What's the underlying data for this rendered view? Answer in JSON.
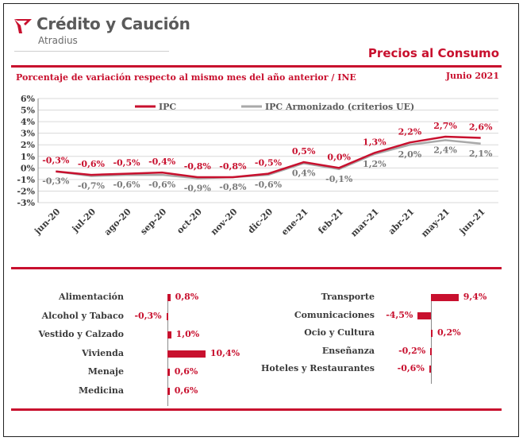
{
  "header": {
    "brand": "Crédito y Caución",
    "brand_sub": "Atradius",
    "report_title": "Precios al Consumo",
    "subtitle": "Porcentaje de variación respecto al mismo mes del año anterior / INE",
    "date": "Junio 2021"
  },
  "colors": {
    "accent": "#c8102e",
    "gray_series": "#a9a9a9",
    "text": "#3a3a3a"
  },
  "chart_data": [
    {
      "type": "line",
      "categories": [
        "jun-20",
        "jul-20",
        "ago-20",
        "sep-20",
        "oct-20",
        "nov-20",
        "dic-20",
        "ene-21",
        "feb-21",
        "mar-21",
        "abr-21",
        "may-21",
        "jun-21"
      ],
      "series": [
        {
          "name": "IPC",
          "values": [
            -0.3,
            -0.6,
            -0.5,
            -0.4,
            -0.8,
            -0.8,
            -0.5,
            0.5,
            0.0,
            1.3,
            2.2,
            2.7,
            2.6
          ],
          "labels": [
            "-0,3%",
            "-0,6%",
            "-0,5%",
            "-0,4%",
            "-0,8%",
            "-0,8%",
            "-0,5%",
            "0,5%",
            "0,0%",
            "1,3%",
            "2,2%",
            "2,7%",
            "2,6%"
          ]
        },
        {
          "name": "IPC Armonizado (criterios UE)",
          "values": [
            -0.3,
            -0.7,
            -0.6,
            -0.6,
            -0.9,
            -0.8,
            -0.6,
            0.4,
            -0.1,
            1.2,
            2.0,
            2.4,
            2.1
          ],
          "labels": [
            "-0,3%",
            "-0,7%",
            "-0,6%",
            "-0,6%",
            "-0,9%",
            "-0,8%",
            "-0,6%",
            "0,4%",
            "-0,1%",
            "1,2%",
            "2,0%",
            "2,4%",
            "2,1%"
          ]
        }
      ],
      "yticks": [
        "6%",
        "5%",
        "4%",
        "3%",
        "2%",
        "1%",
        "0%",
        "-1%",
        "-2%",
        "-3%"
      ],
      "ylim": [
        -3,
        6
      ],
      "grid": true,
      "legend": "top"
    },
    {
      "type": "bar",
      "orientation": "horizontal",
      "categories": [
        "Alimentación",
        "Alcohol y Tabaco",
        "Vestido y Calzado",
        "Vivienda",
        "Menaje",
        "Medicina"
      ],
      "values": [
        0.8,
        -0.3,
        1.0,
        10.4,
        0.6,
        0.6
      ],
      "labels": [
        "0,8%",
        "-0,3%",
        "1,0%",
        "10,4%",
        "0,6%",
        "0,6%"
      ]
    },
    {
      "type": "bar",
      "orientation": "horizontal",
      "categories": [
        "Transporte",
        "Comunicaciones",
        "Ocio y Cultura",
        "Enseñanza",
        "Hoteles y Restaurantes"
      ],
      "values": [
        9.4,
        -4.5,
        0.2,
        -0.2,
        -0.6
      ],
      "labels": [
        "9,4%",
        "-4,5%",
        "0,2%",
        "-0,2%",
        "-0,6%"
      ]
    }
  ]
}
